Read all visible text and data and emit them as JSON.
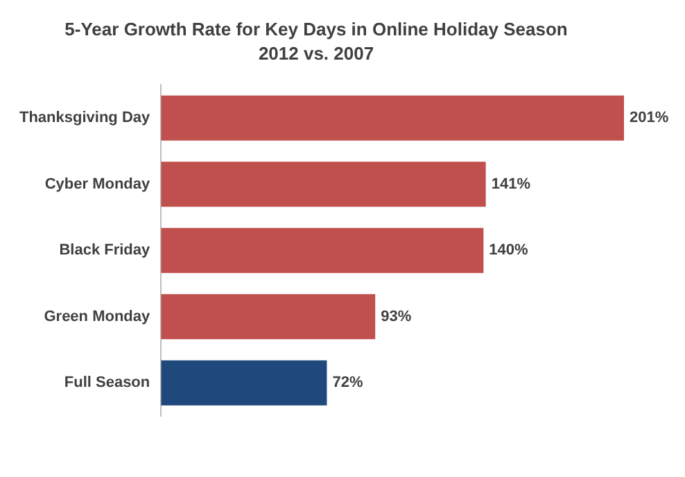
{
  "chart_data": {
    "type": "bar",
    "orientation": "horizontal",
    "title": "5-Year Growth Rate for Key Days in Online Holiday Season",
    "subtitle": "2012 vs. 2007",
    "categories": [
      "Thanksgiving Day",
      "Cyber Monday",
      "Black Friday",
      "Green Monday",
      "Full Season"
    ],
    "values": [
      201,
      141,
      140,
      93,
      72
    ],
    "colors": [
      "#c0504d",
      "#c0504d",
      "#c0504d",
      "#c0504d",
      "#1f497d"
    ],
    "value_labels": [
      "201%",
      "141%",
      "140%",
      "93%",
      "72%"
    ],
    "grid": false,
    "legend": false,
    "tick_labels": "y"
  }
}
